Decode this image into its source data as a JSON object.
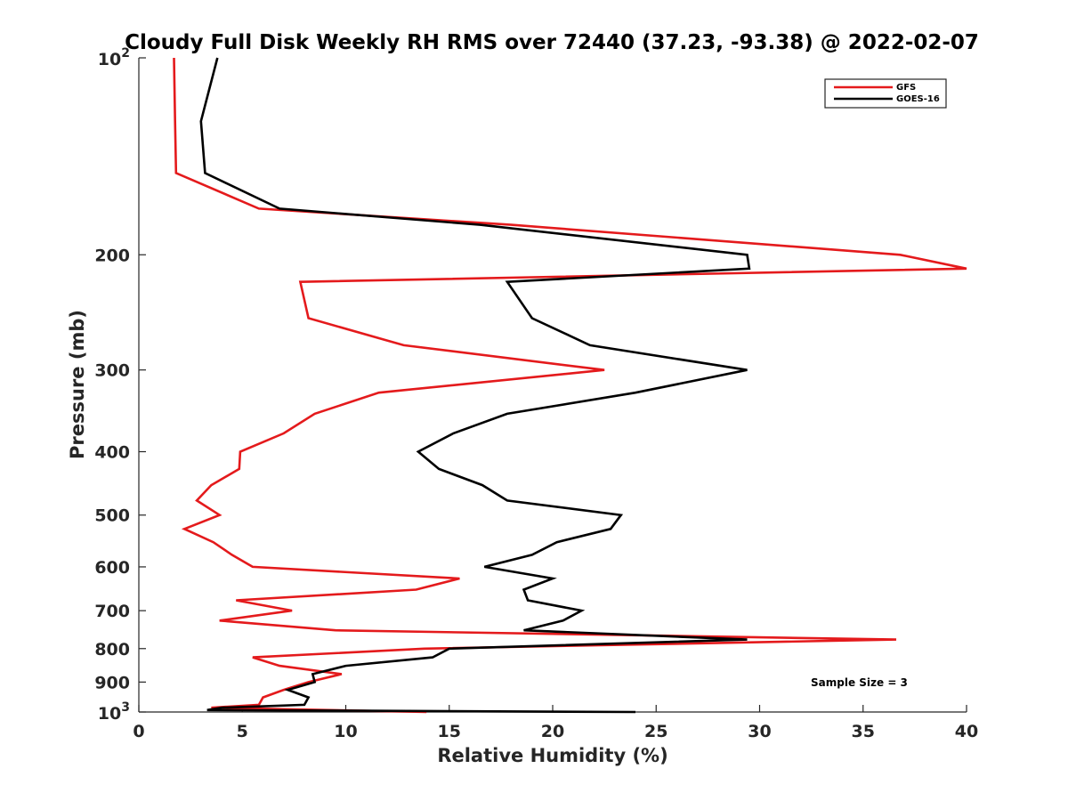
{
  "chart_data": {
    "type": "line",
    "title": "Cloudy Full Disk Weekly RH RMS over 72440 (37.23, -93.38) @ 2022-02-07",
    "xlabel": "Relative Humidity (%)",
    "ylabel": "Pressure (mb)",
    "xlim": [
      0,
      40
    ],
    "ylim": [
      100,
      1000
    ],
    "yscale": "log",
    "y_reversed": true,
    "grid": false,
    "x_ticks": [
      "0",
      "5",
      "10",
      "15",
      "20",
      "25",
      "30",
      "35",
      "40"
    ],
    "y_ticks": [
      {
        "value": 100,
        "base": "10",
        "exp": "2"
      },
      {
        "value": 200,
        "label": "200"
      },
      {
        "value": 300,
        "label": "300"
      },
      {
        "value": 400,
        "label": "400"
      },
      {
        "value": 500,
        "label": "500"
      },
      {
        "value": 600,
        "label": "600"
      },
      {
        "value": 700,
        "label": "700"
      },
      {
        "value": 800,
        "label": "800"
      },
      {
        "value": 900,
        "label": "900"
      },
      {
        "value": 1000,
        "base": "10",
        "exp": "3"
      }
    ],
    "legend_position": "top-right",
    "annotation": "Sample Size = 3",
    "series": [
      {
        "name": "GFS",
        "color": "#e41a1c",
        "points": [
          [
            1.7,
            100
          ],
          [
            1.75,
            125
          ],
          [
            1.8,
            150
          ],
          [
            5.8,
            170
          ],
          [
            18.0,
            180
          ],
          [
            36.8,
            200
          ],
          [
            40.0,
            210
          ],
          [
            7.8,
            220
          ],
          [
            8.2,
            250
          ],
          [
            12.8,
            275
          ],
          [
            22.5,
            300
          ],
          [
            11.6,
            325
          ],
          [
            8.5,
            350
          ],
          [
            7.0,
            375
          ],
          [
            4.9,
            400
          ],
          [
            4.85,
            425
          ],
          [
            3.5,
            450
          ],
          [
            2.8,
            475
          ],
          [
            3.9,
            500
          ],
          [
            2.2,
            525
          ],
          [
            3.6,
            550
          ],
          [
            4.5,
            575
          ],
          [
            5.5,
            600
          ],
          [
            15.5,
            625
          ],
          [
            13.4,
            650
          ],
          [
            4.7,
            675
          ],
          [
            7.4,
            700
          ],
          [
            3.9,
            725
          ],
          [
            9.5,
            750
          ],
          [
            36.6,
            775
          ],
          [
            13.8,
            800
          ],
          [
            5.5,
            825
          ],
          [
            6.8,
            850
          ],
          [
            9.8,
            875
          ],
          [
            8.2,
            900
          ],
          [
            7.0,
            925
          ],
          [
            6.0,
            950
          ],
          [
            5.8,
            975
          ],
          [
            3.5,
            985
          ],
          [
            13.9,
            1000
          ]
        ]
      },
      {
        "name": "GOES-16",
        "color": "#000000",
        "points": [
          [
            3.8,
            100
          ],
          [
            3.0,
            125
          ],
          [
            3.2,
            150
          ],
          [
            6.8,
            170
          ],
          [
            16.5,
            180
          ],
          [
            29.4,
            200
          ],
          [
            29.5,
            210
          ],
          [
            17.8,
            220
          ],
          [
            19.0,
            250
          ],
          [
            21.8,
            275
          ],
          [
            29.4,
            300
          ],
          [
            24.0,
            325
          ],
          [
            17.8,
            350
          ],
          [
            15.2,
            375
          ],
          [
            13.5,
            400
          ],
          [
            14.5,
            425
          ],
          [
            16.6,
            450
          ],
          [
            17.8,
            475
          ],
          [
            23.3,
            500
          ],
          [
            22.8,
            525
          ],
          [
            20.2,
            550
          ],
          [
            19.0,
            575
          ],
          [
            16.7,
            600
          ],
          [
            20.0,
            625
          ],
          [
            18.6,
            650
          ],
          [
            18.8,
            675
          ],
          [
            21.4,
            700
          ],
          [
            20.5,
            725
          ],
          [
            18.6,
            750
          ],
          [
            29.4,
            775
          ],
          [
            15.0,
            800
          ],
          [
            14.2,
            825
          ],
          [
            10.0,
            850
          ],
          [
            8.4,
            875
          ],
          [
            8.5,
            900
          ],
          [
            7.2,
            925
          ],
          [
            8.2,
            950
          ],
          [
            8.0,
            975
          ],
          [
            4.0,
            985
          ],
          [
            3.3,
            993
          ],
          [
            24.0,
            1000
          ]
        ]
      }
    ]
  }
}
